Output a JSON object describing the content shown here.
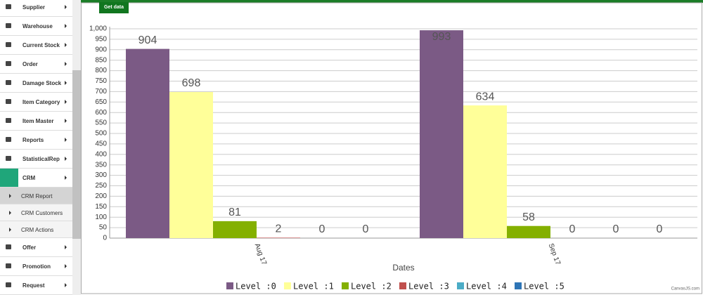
{
  "sidebar": {
    "items": [
      {
        "label": "Supplier"
      },
      {
        "label": "Warehouse"
      },
      {
        "label": "Current Stock"
      },
      {
        "label": "Order"
      },
      {
        "label": "Damage Stock"
      },
      {
        "label": "Item Category"
      },
      {
        "label": "Item Master"
      },
      {
        "label": "Reports"
      },
      {
        "label": "StatisticalRep"
      },
      {
        "label": "CRM",
        "active": true
      },
      {
        "label": "CRM Report",
        "sub": true,
        "selected": true
      },
      {
        "label": "CRM Customers",
        "sub": true
      },
      {
        "label": "CRM Actions",
        "sub": true
      },
      {
        "label": "Offer"
      },
      {
        "label": "Promotion"
      },
      {
        "label": "Request"
      }
    ]
  },
  "toolbar": {
    "button": "Get data"
  },
  "chart_data": {
    "type": "bar",
    "categories": [
      "Aug 17",
      "Sep 17"
    ],
    "series": [
      {
        "name": "Level :0",
        "color": "#7b5a85",
        "values": [
          904,
          993
        ]
      },
      {
        "name": "Level :1",
        "color": "#ffff99",
        "values": [
          698,
          634
        ]
      },
      {
        "name": "Level :2",
        "color": "#84b000",
        "values": [
          81,
          58
        ]
      },
      {
        "name": "Level :3",
        "color": "#c0504d",
        "values": [
          2,
          0
        ]
      },
      {
        "name": "Level :4",
        "color": "#4bacc6",
        "values": [
          0,
          0
        ]
      },
      {
        "name": "Level :5",
        "color": "#2e75b6",
        "values": [
          0,
          0
        ]
      }
    ],
    "xlabel": "Dates",
    "ylim": [
      0,
      1000
    ],
    "yticks": [
      0,
      50,
      100,
      150,
      200,
      250,
      300,
      350,
      400,
      450,
      500,
      550,
      600,
      650,
      700,
      750,
      800,
      850,
      900,
      950,
      {
        "value": 1000,
        "label": "1,000"
      }
    ],
    "grid": true,
    "legend": "bottom",
    "credit": "CanvasJS.com"
  }
}
